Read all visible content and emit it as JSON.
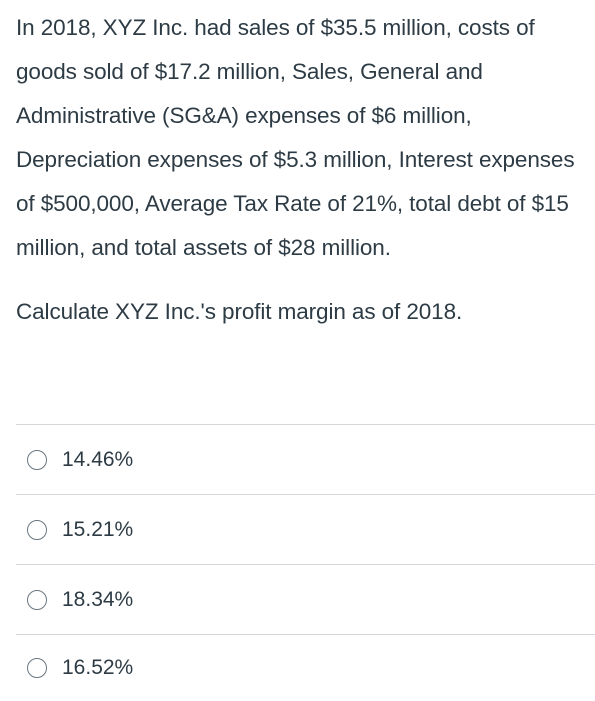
{
  "question": {
    "text": "In 2018, XYZ Inc. had sales of $35.5 million, costs of goods sold of $17.2 million, Sales, General and Administrative (SG&A) expenses of $6 million, Depreciation expenses of $5.3 million, Interest expenses of $500,000, Average Tax Rate of 21%, total debt of $15 million, and total assets of $28 million.",
    "prompt": "Calculate XYZ Inc.'s profit margin as of 2018."
  },
  "answers": [
    {
      "label": "14.46%"
    },
    {
      "label": "15.21%"
    },
    {
      "label": "18.34%"
    },
    {
      "label": "16.52%"
    }
  ]
}
